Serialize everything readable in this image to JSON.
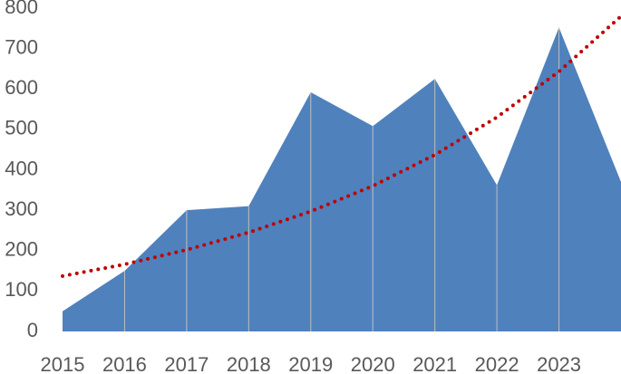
{
  "chart_data": {
    "type": "area",
    "categories": [
      "2015",
      "2016",
      "2017",
      "2018",
      "2019",
      "2020",
      "2021",
      "2022",
      "2023",
      null
    ],
    "series": [
      {
        "color": "#4f81bd",
        "values": [
          50,
          150,
          300,
          310,
          592,
          508,
          625,
          362,
          752,
          370
        ]
      },
      {
        "color": "#c00000",
        "style": "dotted",
        "values": [
          137,
          166,
          202,
          245,
          297,
          360,
          437,
          530,
          643,
          780
        ]
      }
    ],
    "ylim": [
      0,
      800
    ],
    "yticks": [
      0,
      100,
      200,
      300,
      400,
      500,
      600,
      700,
      800
    ],
    "grid": true
  }
}
